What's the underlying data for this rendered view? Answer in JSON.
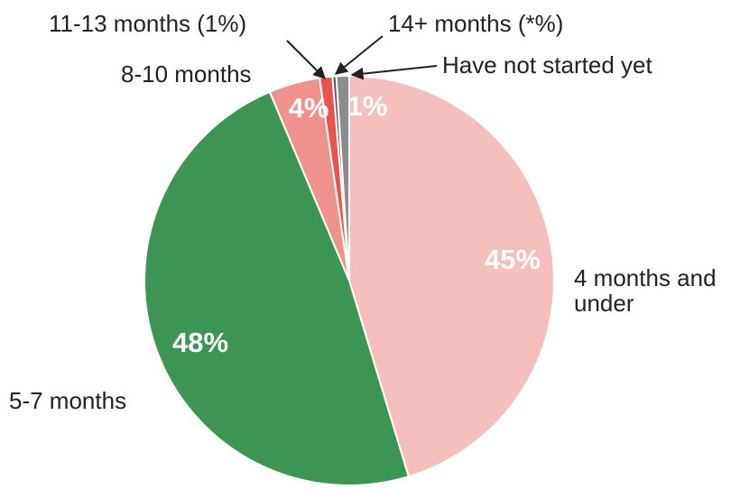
{
  "chart_data": {
    "type": "pie",
    "categories": [
      "4 months and under",
      "5-7 months",
      "8-10 months",
      "11-13 months (1%)",
      "14+ months (*%)",
      "Have not started yet"
    ],
    "values": [
      45,
      48,
      4,
      1,
      0.3,
      1
    ],
    "value_labels": [
      "45%",
      "48%",
      "4%",
      null,
      null,
      "1%"
    ],
    "colors": [
      "#f4bfbd",
      "#3d9553",
      "#f0928c",
      "#e8534f",
      "#5a5a5a",
      "#8c8c8c"
    ]
  }
}
